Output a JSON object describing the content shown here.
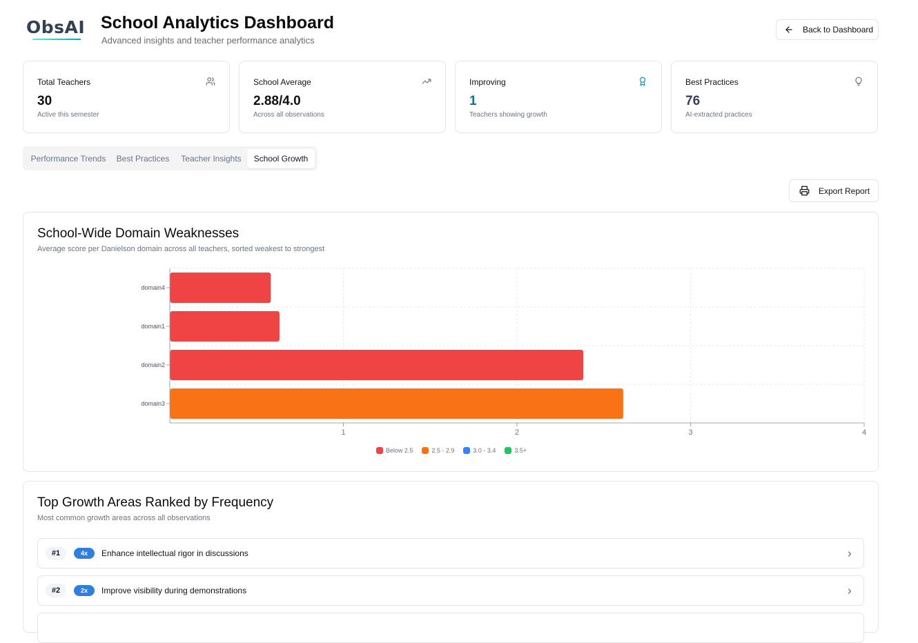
{
  "header": {
    "logo_text": "ObsAI",
    "title": "School Analytics Dashboard",
    "subtitle": "Advanced insights and teacher performance analytics",
    "back_button": "Back to Dashboard"
  },
  "stats": [
    {
      "label": "Total Teachers",
      "value": "30",
      "sub": "Active this semester",
      "icon": "users-icon",
      "value_color": "#111111"
    },
    {
      "label": "School Average",
      "value": "2.88/4.0",
      "sub": "Across all observations",
      "icon": "trending-up-icon",
      "value_color": "#111111"
    },
    {
      "label": "Improving",
      "value": "1",
      "sub": "Teachers showing growth",
      "icon": "award-icon",
      "value_color": "#0e7490"
    },
    {
      "label": "Best Practices",
      "value": "76",
      "sub": "AI-extracted practices",
      "icon": "lightbulb-icon",
      "value_color": "#334155"
    }
  ],
  "tabs": [
    {
      "label": "Performance Trends",
      "active": false
    },
    {
      "label": "Best Practices",
      "active": false
    },
    {
      "label": "Teacher Insights",
      "active": false
    },
    {
      "label": "School Growth",
      "active": true
    }
  ],
  "export_button": "Export Report",
  "weakness_panel": {
    "title": "School-Wide Domain Weaknesses",
    "subtitle": "Average score per Danielson domain across all teachers, sorted weakest to strongest"
  },
  "chart_data": {
    "type": "bar",
    "orientation": "horizontal",
    "categories": [
      "domain4",
      "domain1",
      "domain2",
      "domain3"
    ],
    "values": [
      0.58,
      0.63,
      2.38,
      2.61
    ],
    "colors": [
      "#ef4444",
      "#ef4444",
      "#ef4444",
      "#f97316"
    ],
    "xlim": [
      0,
      4
    ],
    "xticks": [
      "1",
      "2",
      "3",
      "4"
    ],
    "grid": true,
    "legend_position": "bottom",
    "legend": [
      {
        "label": "Below 2.5",
        "color": "#ef4444"
      },
      {
        "label": "2.5 - 2.9",
        "color": "#f97316"
      },
      {
        "label": "3.0 - 3.4",
        "color": "#3b82f6"
      },
      {
        "label": "3.5+",
        "color": "#22c55e"
      }
    ]
  },
  "growth_panel": {
    "title": "Top Growth Areas Ranked by Frequency",
    "subtitle": "Most common growth areas across all observations",
    "items": [
      {
        "rank": "#1",
        "freq": "4x",
        "text": "Enhance intellectual rigor in discussions"
      },
      {
        "rank": "#2",
        "freq": "2x",
        "text": "Improve visibility during demonstrations"
      }
    ]
  }
}
